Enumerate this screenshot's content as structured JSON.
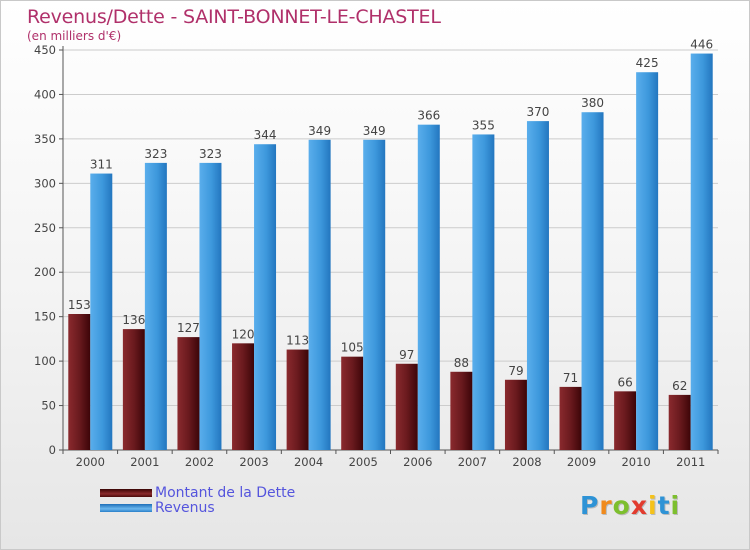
{
  "header": {
    "title": "Revenus/Dette - SAINT-BONNET-LE-CHASTEL",
    "subtitle": "(en milliers d'€)"
  },
  "colors": {
    "title": "#b0306a",
    "debt": "#7a1f22",
    "revenue": "#3b95d9",
    "legend_text": "#5555dd",
    "axis": "#555555",
    "grid": "#cccccc"
  },
  "logo": {
    "text": "Proxiti",
    "letters": [
      {
        "ch": "P",
        "color": "#2e93d6"
      },
      {
        "ch": "r",
        "color": "#f08a1c"
      },
      {
        "ch": "o",
        "color": "#7dbf2e"
      },
      {
        "ch": "x",
        "color": "#e23b2e"
      },
      {
        "ch": "i",
        "color": "#f5c21a"
      },
      {
        "ch": "t",
        "color": "#2e93d6"
      },
      {
        "ch": "i",
        "color": "#7dbf2e"
      }
    ]
  },
  "chart_data": {
    "type": "bar",
    "title": "Revenus/Dette - SAINT-BONNET-LE-CHASTEL",
    "subtitle": "(en milliers d'€)",
    "xlabel": "",
    "ylabel": "",
    "categories": [
      "2000",
      "2001",
      "2002",
      "2003",
      "2004",
      "2005",
      "2006",
      "2007",
      "2008",
      "2009",
      "2010",
      "2011"
    ],
    "series": [
      {
        "name": "Montant de la Dette",
        "color": "#7a1f22",
        "values": [
          153,
          136,
          127,
          120,
          113,
          105,
          97,
          88,
          79,
          71,
          66,
          62
        ]
      },
      {
        "name": "Revenus",
        "color": "#3b95d9",
        "values": [
          311,
          323,
          323,
          344,
          349,
          349,
          366,
          355,
          370,
          380,
          425,
          446
        ]
      }
    ],
    "ylim": [
      0,
      450
    ],
    "yticks": [
      0,
      50,
      100,
      150,
      200,
      250,
      300,
      350,
      400,
      450
    ],
    "grid": true,
    "legend": "bottom-left"
  }
}
